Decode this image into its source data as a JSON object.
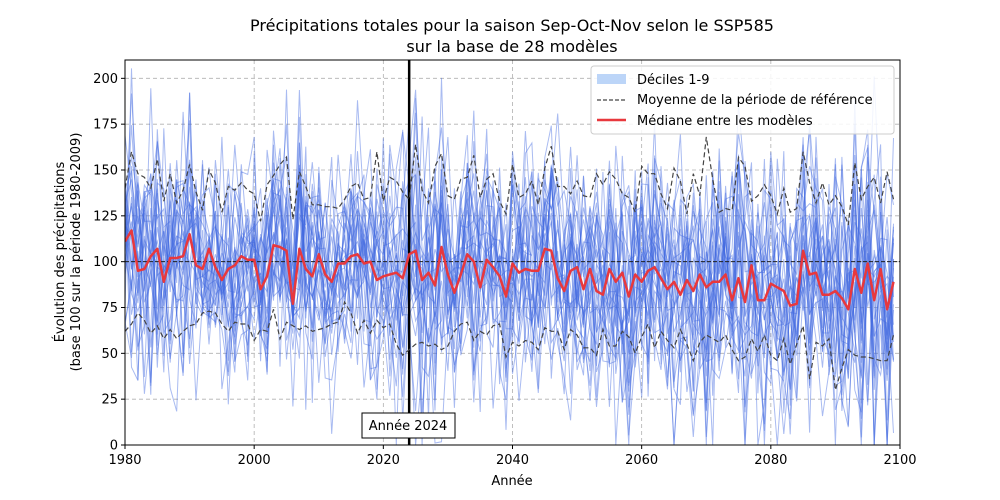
{
  "chart_data": {
    "type": "line",
    "title": [
      "Précipitations totales pour la saison Sep-Oct-Nov selon le SSP585",
      "sur la base de 28 modèles"
    ],
    "xlabel": "Année",
    "ylabel": [
      "Évolution des précipitations",
      "(base 100 sur la période 1980-2009)"
    ],
    "xlim": [
      1980,
      2100
    ],
    "ylim": [
      0,
      210
    ],
    "xticks": [
      1980,
      2000,
      2020,
      2040,
      2060,
      2080,
      2100
    ],
    "yticks": [
      0,
      25,
      50,
      75,
      100,
      125,
      150,
      175,
      200
    ],
    "grid": true,
    "legend_position": "top-right",
    "legend": [
      "Déciles 1-9",
      "Moyenne de la période de référence",
      "Médiane entre les modèles"
    ],
    "reference_mean": 100,
    "highlight_year": 2024,
    "highlight_label": "Année 2024",
    "n_models": 28,
    "x": [
      1980,
      1981,
      1982,
      1983,
      1984,
      1985,
      1986,
      1987,
      1988,
      1989,
      1990,
      1991,
      1992,
      1993,
      1994,
      1995,
      1996,
      1997,
      1998,
      1999,
      2000,
      2001,
      2002,
      2003,
      2004,
      2005,
      2006,
      2007,
      2008,
      2009,
      2010,
      2011,
      2012,
      2013,
      2014,
      2015,
      2016,
      2017,
      2018,
      2019,
      2020,
      2021,
      2022,
      2023,
      2024,
      2025,
      2026,
      2027,
      2028,
      2029,
      2030,
      2031,
      2032,
      2033,
      2034,
      2035,
      2036,
      2037,
      2038,
      2039,
      2040,
      2041,
      2042,
      2043,
      2044,
      2045,
      2046,
      2047,
      2048,
      2049,
      2050,
      2051,
      2052,
      2053,
      2054,
      2055,
      2056,
      2057,
      2058,
      2059,
      2060,
      2061,
      2062,
      2063,
      2064,
      2065,
      2066,
      2067,
      2068,
      2069,
      2070,
      2071,
      2072,
      2073,
      2074,
      2075,
      2076,
      2077,
      2078,
      2079,
      2080,
      2081,
      2082,
      2083,
      2084,
      2085,
      2086,
      2087,
      2088,
      2089,
      2090,
      2091,
      2092,
      2093,
      2094,
      2095,
      2096,
      2097,
      2098,
      2099
    ],
    "series": [
      {
        "name": "Médiane entre les modèles",
        "color": "#e8383d",
        "values": [
          111,
          117,
          95,
          96,
          103,
          107,
          89,
          102,
          102,
          103,
          115,
          98,
          96,
          107,
          97,
          90,
          96,
          98,
          103,
          101,
          101,
          85,
          92,
          109,
          108,
          106,
          77,
          107,
          96,
          92,
          104,
          93,
          89,
          99,
          99,
          103,
          104,
          99,
          100,
          90,
          92,
          93,
          94,
          91,
          104,
          106,
          90,
          94,
          87,
          108,
          93,
          83,
          93,
          104,
          100,
          86,
          101,
          97,
          92,
          81,
          99,
          94,
          96,
          95,
          95,
          107,
          106,
          91,
          84,
          95,
          97,
          85,
          96,
          84,
          82,
          96,
          89,
          94,
          81,
          93,
          89,
          95,
          97,
          91,
          85,
          89,
          82,
          90,
          84,
          93,
          86,
          89,
          89,
          93,
          79,
          91,
          78,
          98,
          79,
          79,
          88,
          86,
          84,
          76,
          77,
          106,
          93,
          94,
          82,
          82,
          84,
          80,
          74,
          96,
          83,
          99,
          79,
          96,
          74,
          89
        ]
      },
      {
        "name": "Décile 9",
        "color": "#444444",
        "values": [
          140,
          160,
          148,
          146,
          140,
          156,
          133,
          148,
          132,
          139,
          153,
          138,
          128,
          150,
          143,
          127,
          141,
          139,
          143,
          139,
          137,
          122,
          142,
          147,
          153,
          157,
          123,
          149,
          141,
          131,
          131,
          130,
          130,
          129,
          134,
          141,
          143,
          134,
          135,
          160,
          133,
          146,
          144,
          138,
          134,
          164,
          139,
          132,
          152,
          159,
          136,
          134,
          145,
          146,
          158,
          135,
          145,
          148,
          133,
          126,
          153,
          135,
          137,
          144,
          131,
          151,
          163,
          141,
          141,
          137,
          144,
          136,
          135,
          148,
          142,
          149,
          145,
          137,
          135,
          127,
          152,
          148,
          148,
          137,
          129,
          151,
          144,
          126,
          148,
          136,
          168,
          145,
          127,
          129,
          128,
          157,
          152,
          133,
          136,
          142,
          136,
          126,
          140,
          127,
          129,
          160,
          143,
          132,
          143,
          131,
          136,
          130,
          120,
          154,
          134,
          141,
          146,
          132,
          149,
          134
        ]
      },
      {
        "name": "Décile 1",
        "color": "#444444",
        "values": [
          62,
          66,
          72,
          68,
          61,
          65,
          58,
          63,
          58,
          62,
          65,
          66,
          72,
          73,
          72,
          66,
          62,
          67,
          66,
          66,
          57,
          63,
          62,
          74,
          58,
          67,
          65,
          63,
          65,
          62,
          63,
          64,
          66,
          67,
          78,
          72,
          61,
          68,
          61,
          68,
          64,
          66,
          55,
          49,
          52,
          55,
          56,
          54,
          55,
          52,
          54,
          62,
          66,
          67,
          57,
          62,
          60,
          65,
          66,
          48,
          56,
          54,
          57,
          56,
          52,
          64,
          62,
          62,
          52,
          63,
          60,
          53,
          53,
          49,
          63,
          54,
          54,
          62,
          59,
          50,
          59,
          66,
          53,
          62,
          57,
          53,
          63,
          55,
          46,
          56,
          60,
          58,
          56,
          60,
          52,
          46,
          48,
          58,
          51,
          60,
          49,
          46,
          58,
          44,
          55,
          65,
          36,
          56,
          54,
          58,
          30,
          42,
          52,
          49,
          48,
          48,
          47,
          46,
          46,
          60
        ]
      }
    ]
  }
}
